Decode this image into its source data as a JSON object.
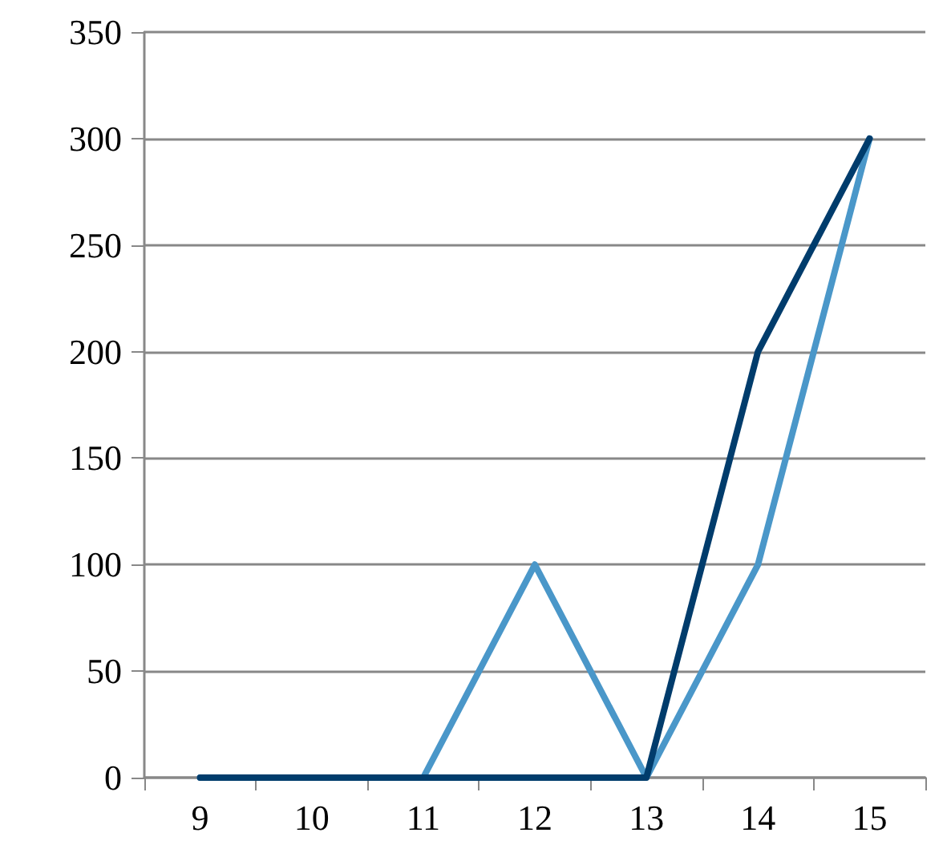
{
  "chart_data": {
    "type": "line",
    "categories": [
      "9",
      "10",
      "11",
      "12",
      "13",
      "14",
      "15"
    ],
    "series": [
      {
        "color": "#4a97c9",
        "values": [
          0,
          0,
          0,
          100,
          0,
          100,
          300
        ]
      },
      {
        "color": "#003c6c",
        "values": [
          0,
          0,
          0,
          0,
          0,
          200,
          300
        ]
      }
    ],
    "ylim": [
      0,
      350
    ],
    "yticks": [
      0,
      50,
      100,
      150,
      200,
      250,
      300,
      350
    ],
    "grid": "y",
    "marker": "none",
    "line_style": "solid"
  }
}
